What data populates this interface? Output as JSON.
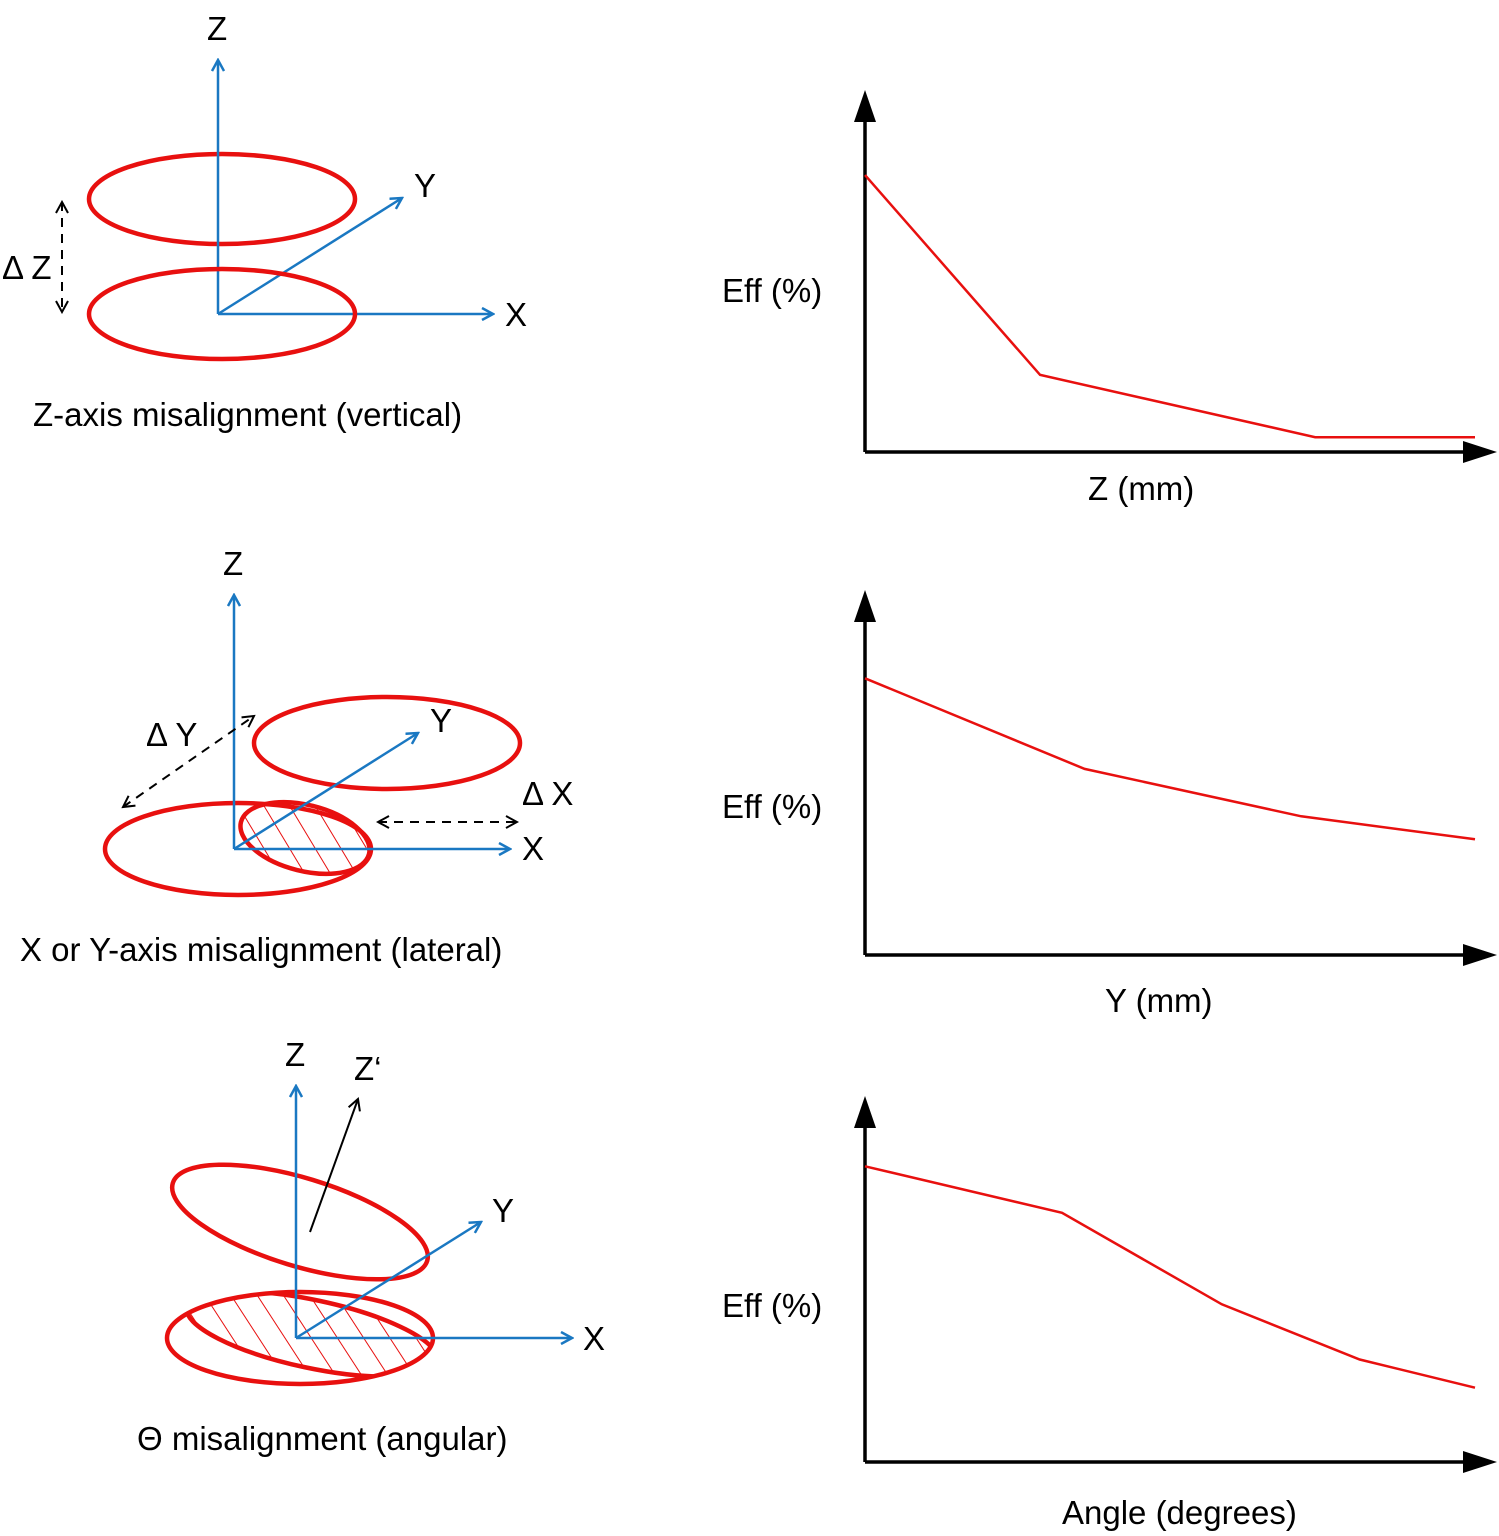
{
  "diagrams": {
    "vertical": {
      "z": "Z",
      "y": "Y",
      "x": "X",
      "delta": "Δ Z",
      "caption": "Z-axis misalignment (vertical)"
    },
    "lateral": {
      "z": "Z",
      "y": "Y",
      "x": "X",
      "delta_y": "Δ Y",
      "delta_x": "Δ X",
      "caption": "X or Y-axis misalignment (lateral)"
    },
    "angular": {
      "z": "Z",
      "z_prime": "Z‘",
      "y": "Y",
      "x": "X",
      "caption": "Θ  misalignment (angular)"
    }
  },
  "colors": {
    "axis": "#1a78c2",
    "coil": "#e8100f",
    "line": "#e8100f"
  },
  "chart_data": [
    {
      "type": "line",
      "ylabel": "Eff (%)",
      "xlabel": "Z (mm)",
      "x": [
        0,
        28.7,
        73.8,
        100
      ],
      "y": [
        76.5,
        21.3,
        4.1,
        4.1
      ],
      "xlim": [
        0,
        100
      ],
      "ylim": [
        0,
        100
      ],
      "grid": false
    },
    {
      "type": "line",
      "ylabel": "Eff (%)",
      "xlabel": "Y (mm)",
      "x": [
        0,
        36,
        71.5,
        100
      ],
      "y": [
        75.8,
        51,
        38,
        31.7
      ],
      "xlim": [
        0,
        100
      ],
      "ylim": [
        0,
        100
      ],
      "grid": false
    },
    {
      "type": "line",
      "ylabel": "Eff (%)",
      "xlabel": "Angle (degrees)",
      "x": [
        0,
        32.3,
        58.5,
        81.1,
        100
      ],
      "y": [
        80.8,
        68.1,
        43.1,
        28,
        20.3
      ],
      "xlim": [
        0,
        100
      ],
      "ylim": [
        0,
        100
      ],
      "grid": false
    }
  ]
}
